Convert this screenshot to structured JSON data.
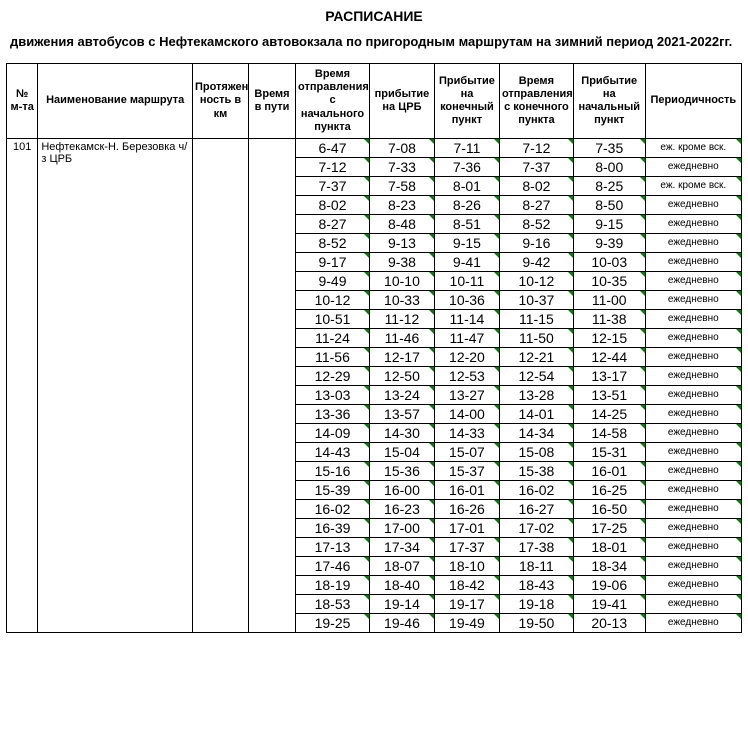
{
  "title": "РАСПИСАНИЕ",
  "subtitle": "движения автобусов с Нефтекамского автовокзала по пригородным  маршрутам на зимний период 2021-2022гг.",
  "columns": [
    "№ м-та",
    "Наименование маршрута",
    "Протяжен ность в км",
    "Время в пути",
    "Время отправления с начального пункта",
    "прибытие на ЦРБ",
    "Прибытие на конечный пункт",
    "Время отправления с конечного пункта",
    "Прибытие на начальный пункт",
    "Периодичность"
  ],
  "route_num": "101",
  "route_name": "Нефтекамск-Н. Березовка ч/з ЦРБ",
  "rows": [
    {
      "t": [
        "6-47",
        "7-08",
        "7-11",
        "7-12",
        "7-35"
      ],
      "f": "еж. кроме вск."
    },
    {
      "t": [
        "7-12",
        "7-33",
        "7-36",
        "7-37",
        "8-00"
      ],
      "f": "ежедневно"
    },
    {
      "t": [
        "7-37",
        "7-58",
        "8-01",
        "8-02",
        "8-25"
      ],
      "f": "еж. кроме вск."
    },
    {
      "t": [
        "8-02",
        "8-23",
        "8-26",
        "8-27",
        "8-50"
      ],
      "f": "ежедневно"
    },
    {
      "t": [
        "8-27",
        "8-48",
        "8-51",
        "8-52",
        "9-15"
      ],
      "f": "ежедневно"
    },
    {
      "t": [
        "8-52",
        "9-13",
        "9-15",
        "9-16",
        "9-39"
      ],
      "f": "ежедневно"
    },
    {
      "t": [
        "9-17",
        "9-38",
        "9-41",
        "9-42",
        "10-03"
      ],
      "f": "ежедневно"
    },
    {
      "t": [
        "9-49",
        "10-10",
        "10-11",
        "10-12",
        "10-35"
      ],
      "f": "ежедневно"
    },
    {
      "t": [
        "10-12",
        "10-33",
        "10-36",
        "10-37",
        "11-00"
      ],
      "f": "ежедневно"
    },
    {
      "t": [
        "10-51",
        "11-12",
        "11-14",
        "11-15",
        "11-38"
      ],
      "f": "ежедневно"
    },
    {
      "t": [
        "11-24",
        "11-46",
        "11-47",
        "11-50",
        "12-15"
      ],
      "f": "ежедневно"
    },
    {
      "t": [
        "11-56",
        "12-17",
        "12-20",
        "12-21",
        "12-44"
      ],
      "f": "ежедневно"
    },
    {
      "t": [
        "12-29",
        "12-50",
        "12-53",
        "12-54",
        "13-17"
      ],
      "f": "ежедневно"
    },
    {
      "t": [
        "13-03",
        "13-24",
        "13-27",
        "13-28",
        "13-51"
      ],
      "f": "ежедневно"
    },
    {
      "t": [
        "13-36",
        "13-57",
        "14-00",
        "14-01",
        "14-25"
      ],
      "f": "ежедневно"
    },
    {
      "t": [
        "14-09",
        "14-30",
        "14-33",
        "14-34",
        "14-58"
      ],
      "f": "ежедневно"
    },
    {
      "t": [
        "14-43",
        "15-04",
        "15-07",
        "15-08",
        "15-31"
      ],
      "f": "ежедневно"
    },
    {
      "t": [
        "15-16",
        "15-36",
        "15-37",
        "15-38",
        "16-01"
      ],
      "f": "ежедневно"
    },
    {
      "t": [
        "15-39",
        "16-00",
        "16-01",
        "16-02",
        "16-25"
      ],
      "f": "ежедневно"
    },
    {
      "t": [
        "16-02",
        "16-23",
        "16-26",
        "16-27",
        "16-50"
      ],
      "f": "ежедневно"
    },
    {
      "t": [
        "16-39",
        "17-00",
        "17-01",
        "17-02",
        "17-25"
      ],
      "f": "ежедневно"
    },
    {
      "t": [
        "17-13",
        "17-34",
        "17-37",
        "17-38",
        "18-01"
      ],
      "f": "ежедневно"
    },
    {
      "t": [
        "17-46",
        "18-07",
        "18-10",
        "18-11",
        "18-34"
      ],
      "f": "ежедневно"
    },
    {
      "t": [
        "18-19",
        "18-40",
        "18-42",
        "18-43",
        "19-06"
      ],
      "f": "ежедневно"
    },
    {
      "t": [
        "18-53",
        "19-14",
        "19-17",
        "19-18",
        "19-41"
      ],
      "f": "ежедневно"
    },
    {
      "t": [
        "19-25",
        "19-46",
        "19-49",
        "19-50",
        "20-13"
      ],
      "f": "ежедневно"
    }
  ]
}
